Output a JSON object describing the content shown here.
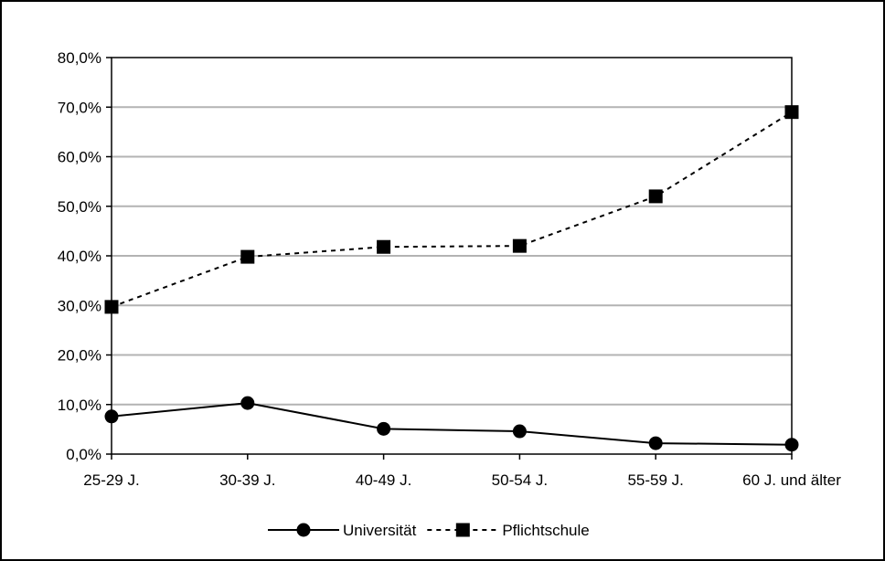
{
  "chart_data": {
    "type": "line",
    "categories": [
      "25-29 J.",
      "30-39 J.",
      "40-49 J.",
      "50-54 J.",
      "55-59 J.",
      "60 J. und älter"
    ],
    "series": [
      {
        "name": "Universität",
        "values": [
          7.6,
          10.3,
          5.1,
          4.6,
          2.2,
          1.9
        ],
        "line_style": "solid",
        "marker": "circle",
        "color": "#000000"
      },
      {
        "name": "Pflichtschule",
        "values": [
          29.7,
          39.8,
          41.8,
          42.0,
          52.0,
          69.0
        ],
        "line_style": "dashed",
        "marker": "square",
        "color": "#000000"
      }
    ],
    "title": "",
    "xlabel": "",
    "ylabel": "",
    "ylim": [
      0,
      80
    ],
    "yticks": [
      0,
      10,
      20,
      30,
      40,
      50,
      60,
      70,
      80
    ],
    "ytick_labels": [
      "0,0%",
      "10,0%",
      "20,0%",
      "30,0%",
      "40,0%",
      "50,0%",
      "60,0%",
      "70,0%",
      "80,0%"
    ],
    "grid": "horizontal",
    "grid_color": "#b3b3b3",
    "legend": "bottom"
  }
}
